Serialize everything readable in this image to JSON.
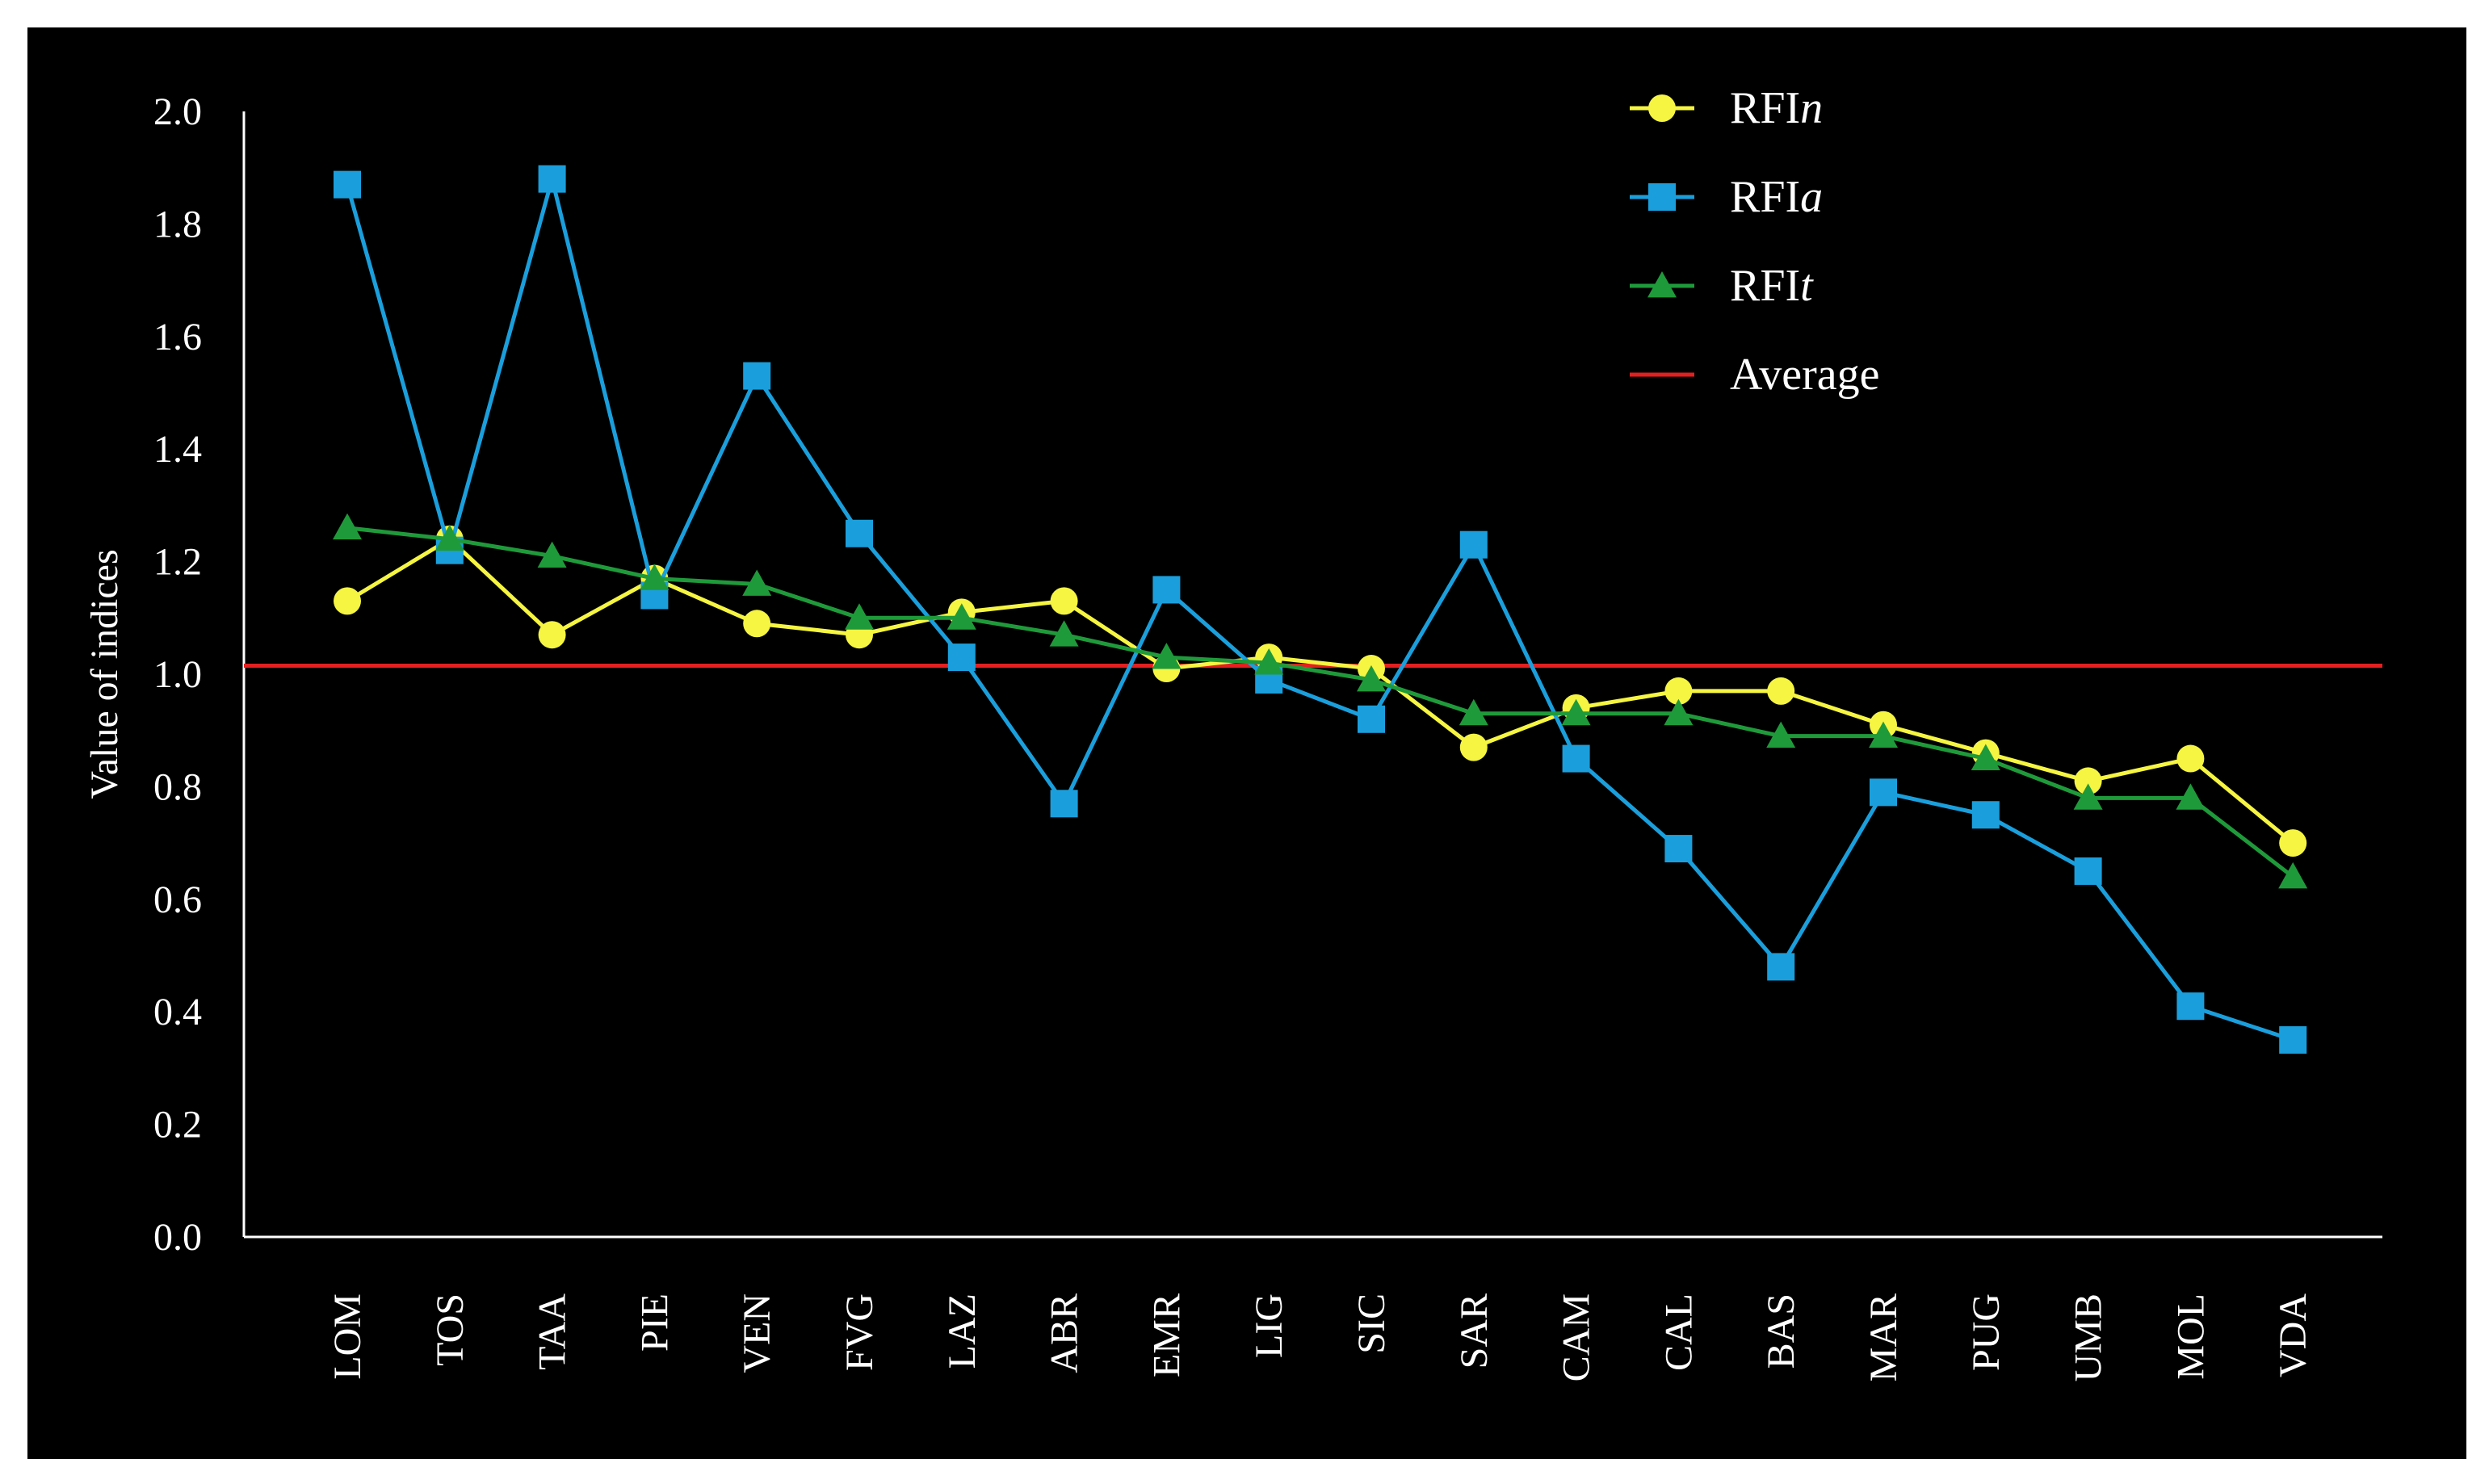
{
  "chart_data": {
    "type": "line",
    "title": "",
    "xlabel": "",
    "ylabel": "Value of indices",
    "ylim": [
      0.0,
      2.0
    ],
    "yticks": [
      "0.0",
      "0.2",
      "0.4",
      "0.6",
      "0.8",
      "1.0",
      "1.2",
      "1.4",
      "1.6",
      "1.8",
      "2.0"
    ],
    "ytick_values": [
      0.0,
      0.2,
      0.4,
      0.6,
      0.8,
      1.0,
      1.2,
      1.4,
      1.6,
      1.8,
      2.0
    ],
    "categories": [
      "LOM",
      "TOS",
      "TAA",
      "PIE",
      "VEN",
      "FVG",
      "LAZ",
      "ABR",
      "EMR",
      "LIG",
      "SIC",
      "SAR",
      "CAM",
      "CAL",
      "BAS",
      "MAR",
      "PUG",
      "UMB",
      "MOL",
      "VDA"
    ],
    "series": [
      {
        "name": "RFIn",
        "legend_base": "RFI",
        "legend_suffix": "n",
        "color": "#f5f542",
        "marker": "circle",
        "values": [
          1.13,
          1.24,
          1.07,
          1.17,
          1.09,
          1.07,
          1.11,
          1.13,
          1.01,
          1.03,
          1.01,
          0.87,
          0.94,
          0.97,
          0.97,
          0.91,
          0.86,
          0.81,
          0.85,
          0.7
        ]
      },
      {
        "name": "RFIa",
        "legend_base": "RFI",
        "legend_suffix": "a",
        "color": "#1a9fdc",
        "marker": "square",
        "values": [
          1.87,
          1.22,
          1.88,
          1.14,
          1.53,
          1.25,
          1.03,
          0.77,
          1.15,
          0.99,
          0.92,
          1.23,
          0.85,
          0.69,
          0.48,
          0.79,
          0.75,
          0.65,
          0.41,
          0.35
        ]
      },
      {
        "name": "RFIt",
        "legend_base": "RFI",
        "legend_suffix": "t",
        "color": "#1f9a3a",
        "marker": "triangle",
        "values": [
          1.26,
          1.24,
          1.21,
          1.17,
          1.16,
          1.1,
          1.1,
          1.07,
          1.03,
          1.02,
          0.99,
          0.93,
          0.93,
          0.93,
          0.89,
          0.89,
          0.85,
          0.78,
          0.78,
          0.64
        ]
      }
    ],
    "average": {
      "name": "Average",
      "value": 1.015,
      "color": "#e32020"
    },
    "legend_position": "top-right",
    "grid": false,
    "colors": {
      "background": "#000000",
      "axis": "#ffffff",
      "text": "#ffffff"
    }
  }
}
